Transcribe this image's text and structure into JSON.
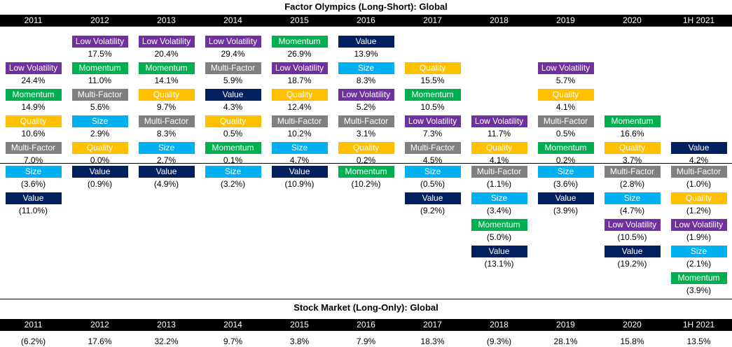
{
  "top_title": "Factor Olympics (Long-Short): Global",
  "bottom_title": "Stock Market (Long-Only): Global",
  "years": [
    "2011",
    "2012",
    "2013",
    "2014",
    "2015",
    "2016",
    "2017",
    "2018",
    "2019",
    "2020",
    "1H 2021"
  ],
  "factor_colors": {
    "Low Volatility": "#7030A0",
    "Momentum": "#00B050",
    "Quality": "#FFC000",
    "Multi-Factor": "#808080",
    "Size": "#00B0F0",
    "Value": "#002060"
  },
  "chart_data": [
    {
      "type": "table",
      "title": "Factor Olympics (Long-Short): Global",
      "categories": [
        "2011",
        "2012",
        "2013",
        "2014",
        "2015",
        "2016",
        "2017",
        "2018",
        "2019",
        "2020",
        "1H 2021"
      ],
      "columns": [
        [
          {
            "factor": "Low Volatility",
            "label": "24.4%",
            "value": 24.4
          },
          {
            "factor": "Momentum",
            "label": "14.9%",
            "value": 14.9
          },
          {
            "factor": "Quality",
            "label": "10.6%",
            "value": 10.6
          },
          {
            "factor": "Multi-Factor",
            "label": "7.0%",
            "value": 7.0
          },
          {
            "factor": "Size",
            "label": "(3.6%)",
            "value": -3.6
          },
          {
            "factor": "Value",
            "label": "(11.0%)",
            "value": -11.0
          }
        ],
        [
          {
            "factor": "Low Volatility",
            "label": "17.5%",
            "value": 17.5
          },
          {
            "factor": "Momentum",
            "label": "11.0%",
            "value": 11.0
          },
          {
            "factor": "Multi-Factor",
            "label": "5.6%",
            "value": 5.6
          },
          {
            "factor": "Size",
            "label": "2.9%",
            "value": 2.9
          },
          {
            "factor": "Quality",
            "label": "0.0%",
            "value": 0.0
          },
          {
            "factor": "Value",
            "label": "(0.9%)",
            "value": -0.9
          }
        ],
        [
          {
            "factor": "Low Volatility",
            "label": "20.4%",
            "value": 20.4
          },
          {
            "factor": "Momentum",
            "label": "14.1%",
            "value": 14.1
          },
          {
            "factor": "Quality",
            "label": "9.7%",
            "value": 9.7
          },
          {
            "factor": "Multi-Factor",
            "label": "8.3%",
            "value": 8.3
          },
          {
            "factor": "Size",
            "label": "2.7%",
            "value": 2.7
          },
          {
            "factor": "Value",
            "label": "(4.9%)",
            "value": -4.9
          }
        ],
        [
          {
            "factor": "Low Volatility",
            "label": "29.4%",
            "value": 29.4
          },
          {
            "factor": "Multi-Factor",
            "label": "5.9%",
            "value": 5.9
          },
          {
            "factor": "Value",
            "label": "4.3%",
            "value": 4.3
          },
          {
            "factor": "Quality",
            "label": "0.5%",
            "value": 0.5
          },
          {
            "factor": "Momentum",
            "label": "0.1%",
            "value": 0.1
          },
          {
            "factor": "Size",
            "label": "(3.2%)",
            "value": -3.2
          }
        ],
        [
          {
            "factor": "Momentum",
            "label": "26.9%",
            "value": 26.9
          },
          {
            "factor": "Low Volatility",
            "label": "18.7%",
            "value": 18.7
          },
          {
            "factor": "Quality",
            "label": "12.4%",
            "value": 12.4
          },
          {
            "factor": "Multi-Factor",
            "label": "10.2%",
            "value": 10.2
          },
          {
            "factor": "Size",
            "label": "4.7%",
            "value": 4.7
          },
          {
            "factor": "Value",
            "label": "(10.9%)",
            "value": -10.9
          }
        ],
        [
          {
            "factor": "Value",
            "label": "13.9%",
            "value": 13.9
          },
          {
            "factor": "Size",
            "label": "8.3%",
            "value": 8.3
          },
          {
            "factor": "Low Volatility",
            "label": "5.2%",
            "value": 5.2
          },
          {
            "factor": "Multi-Factor",
            "label": "3.1%",
            "value": 3.1
          },
          {
            "factor": "Quality",
            "label": "0.2%",
            "value": 0.2
          },
          {
            "factor": "Momentum",
            "label": "(10.2%)",
            "value": -10.2
          }
        ],
        [
          {
            "factor": "Quality",
            "label": "15.5%",
            "value": 15.5
          },
          {
            "factor": "Momentum",
            "label": "10.5%",
            "value": 10.5
          },
          {
            "factor": "Low Volatility",
            "label": "7.3%",
            "value": 7.3
          },
          {
            "factor": "Multi-Factor",
            "label": "4.5%",
            "value": 4.5
          },
          {
            "factor": "Size",
            "label": "(0.5%)",
            "value": -0.5
          },
          {
            "factor": "Value",
            "label": "(9.2%)",
            "value": -9.2
          }
        ],
        [
          {
            "factor": "Low Volatility",
            "label": "11.7%",
            "value": 11.7
          },
          {
            "factor": "Quality",
            "label": "4.1%",
            "value": 4.1
          },
          {
            "factor": "Multi-Factor",
            "label": "(1.1%)",
            "value": -1.1
          },
          {
            "factor": "Size",
            "label": "(3.4%)",
            "value": -3.4
          },
          {
            "factor": "Momentum",
            "label": "(5.0%)",
            "value": -5.0
          },
          {
            "factor": "Value",
            "label": "(13.1%)",
            "value": -13.1
          }
        ],
        [
          {
            "factor": "Low Volatility",
            "label": "5.7%",
            "value": 5.7
          },
          {
            "factor": "Quality",
            "label": "4.1%",
            "value": 4.1
          },
          {
            "factor": "Multi-Factor",
            "label": "0.5%",
            "value": 0.5
          },
          {
            "factor": "Momentum",
            "label": "0.2%",
            "value": 0.2
          },
          {
            "factor": "Size",
            "label": "(3.6%)",
            "value": -3.6
          },
          {
            "factor": "Value",
            "label": "(3.9%)",
            "value": -3.9
          }
        ],
        [
          {
            "factor": "Momentum",
            "label": "16.6%",
            "value": 16.6
          },
          {
            "factor": "Quality",
            "label": "3.7%",
            "value": 3.7
          },
          {
            "factor": "Multi-Factor",
            "label": "(2.8%)",
            "value": -2.8
          },
          {
            "factor": "Size",
            "label": "(4.7%)",
            "value": -4.7
          },
          {
            "factor": "Low Volatility",
            "label": "(10.5%)",
            "value": -10.5
          },
          {
            "factor": "Value",
            "label": "(19.2%)",
            "value": -19.2
          }
        ],
        [
          {
            "factor": "Value",
            "label": "4.2%",
            "value": 4.2
          },
          {
            "factor": "Multi-Factor",
            "label": "(1.0%)",
            "value": -1.0
          },
          {
            "factor": "Quality",
            "label": "(1.2%)",
            "value": -1.2
          },
          {
            "factor": "Low Volatility",
            "label": "(1.9%)",
            "value": -1.9
          },
          {
            "factor": "Size",
            "label": "(2.1%)",
            "value": -2.1
          },
          {
            "factor": "Momentum",
            "label": "(3.9%)",
            "value": -3.9
          }
        ]
      ]
    },
    {
      "type": "table",
      "title": "Stock Market (Long-Only): Global",
      "categories": [
        "2011",
        "2012",
        "2013",
        "2014",
        "2015",
        "2016",
        "2017",
        "2018",
        "2019",
        "2020",
        "1H 2021"
      ],
      "labels": [
        "(6.2%)",
        "17.6%",
        "32.2%",
        "9.7%",
        "3.8%",
        "7.9%",
        "18.3%",
        "(9.3%)",
        "28.1%",
        "15.8%",
        "13.5%"
      ],
      "values": [
        -6.2,
        17.6,
        32.2,
        9.7,
        3.8,
        7.9,
        18.3,
        -9.3,
        28.1,
        15.8,
        13.5
      ]
    }
  ]
}
